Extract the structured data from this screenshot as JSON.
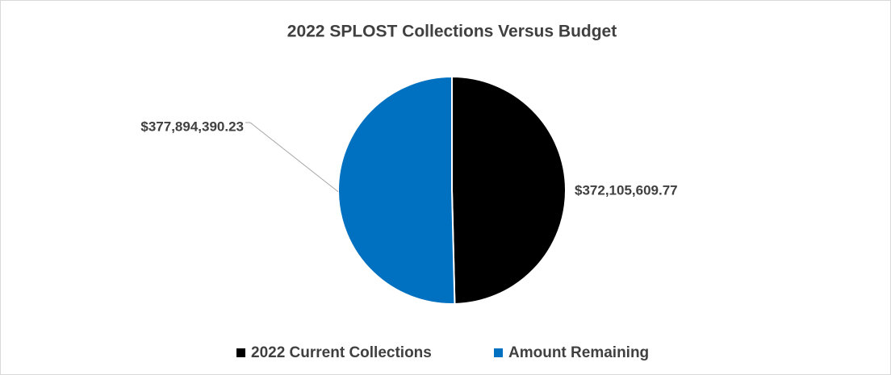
{
  "chart_data": {
    "type": "pie",
    "title": "2022 SPLOST Collections Versus Budget",
    "categories": [
      "2022 Current Collections",
      "Amount Remaining"
    ],
    "values": [
      372105609.77,
      377894390.23
    ],
    "value_labels": [
      "$372,105,609.77",
      "$377,894,390.23"
    ],
    "colors": [
      "#000000",
      "#0070c0"
    ],
    "legend": "bottom"
  }
}
